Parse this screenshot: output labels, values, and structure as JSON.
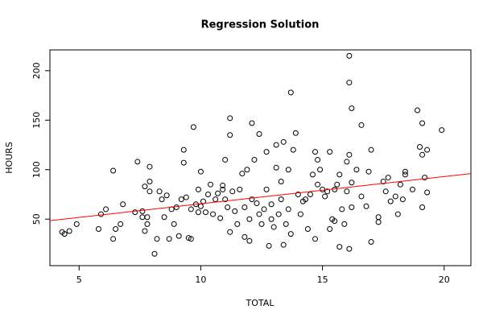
{
  "chart_data": {
    "type": "scatter",
    "title": "Regression Solution",
    "x_label": "TOTAL",
    "y_label": "HOURS",
    "color": "#000000",
    "x": [
      4.3,
      4.4,
      4.6,
      4.9,
      5.8,
      5.9,
      6.1,
      6.4,
      6.4,
      6.5,
      6.7,
      6.8,
      7.3,
      7.4,
      7.6,
      7.6,
      7.7,
      7.7,
      7.8,
      7.8,
      7.9,
      7.9,
      7.9,
      8.1,
      8.2,
      8.3,
      8.4,
      8.5,
      8.6,
      8.7,
      8.8,
      8.9,
      9.0,
      9.1,
      9.2,
      9.3,
      9.3,
      9.4,
      9.5,
      9.6,
      9.6,
      9.7,
      9.8,
      9.9,
      9.9,
      10.0,
      10.0,
      10.1,
      10.2,
      10.3,
      10.4,
      10.5,
      10.6,
      10.7,
      10.8,
      10.9,
      10.9,
      11.0,
      11.0,
      11.1,
      11.2,
      11.2,
      11.2,
      11.3,
      11.4,
      11.5,
      11.6,
      11.7,
      11.8,
      11.8,
      11.9,
      12.0,
      12.0,
      12.1,
      12.1,
      12.2,
      12.3,
      12.4,
      12.4,
      12.5,
      12.6,
      12.7,
      12.7,
      12.8,
      12.9,
      12.9,
      13.0,
      13.1,
      13.1,
      13.2,
      13.3,
      13.3,
      13.4,
      13.4,
      13.5,
      13.6,
      13.6,
      13.7,
      13.7,
      13.8,
      13.9,
      14.0,
      14.1,
      14.2,
      14.3,
      14.4,
      14.5,
      14.6,
      14.7,
      14.7,
      14.8,
      14.8,
      14.9,
      15.0,
      15.1,
      15.2,
      15.3,
      15.3,
      15.4,
      15.5,
      15.5,
      15.6,
      15.7,
      15.7,
      15.8,
      15.9,
      16.0,
      16.0,
      16.1,
      16.1,
      16.1,
      16.1,
      16.2,
      16.2,
      16.2,
      16.4,
      16.6,
      16.6,
      16.8,
      16.9,
      17.0,
      17.0,
      17.3,
      17.3,
      17.5,
      17.6,
      17.7,
      17.8,
      18.0,
      18.1,
      18.2,
      18.3,
      18.4,
      18.4,
      18.7,
      18.9,
      19.0,
      19.1,
      19.1,
      19.1,
      19.2,
      19.3,
      19.3,
      19.9
    ],
    "values": [
      37,
      35,
      38,
      45,
      40,
      55,
      60,
      30,
      99,
      40,
      45,
      65,
      57,
      108,
      58,
      52,
      38,
      83,
      45,
      52,
      78,
      88,
      103,
      15,
      30,
      78,
      70,
      52,
      74,
      30,
      60,
      45,
      62,
      33,
      70,
      107,
      120,
      72,
      31,
      30,
      60,
      143,
      65,
      57,
      80,
      98,
      63,
      68,
      57,
      75,
      85,
      55,
      70,
      76,
      51,
      80,
      84,
      110,
      70,
      62,
      37,
      135,
      152,
      78,
      58,
      45,
      80,
      96,
      32,
      62,
      100,
      28,
      50,
      147,
      70,
      110,
      66,
      55,
      136,
      45,
      60,
      118,
      80,
      23,
      50,
      65,
      42,
      102,
      125,
      55,
      88,
      70,
      24,
      128,
      45,
      100,
      60,
      178,
      35,
      120,
      137,
      75,
      55,
      68,
      70,
      40,
      75,
      95,
      118,
      30,
      85,
      110,
      100,
      80,
      73,
      78,
      40,
      118,
      50,
      48,
      80,
      85,
      22,
      95,
      60,
      45,
      78,
      108,
      20,
      115,
      188,
      215,
      162,
      87,
      62,
      100,
      145,
      73,
      63,
      98,
      27,
      120,
      52,
      47,
      88,
      78,
      92,
      68,
      73,
      55,
      85,
      70,
      95,
      98,
      80,
      160,
      123,
      147,
      62,
      115,
      92,
      120,
      77,
      140
    ],
    "fit": {
      "intercept": 38,
      "slope": 2.75,
      "color": "#ff0000"
    },
    "xlim": [
      3.8,
      21.1
    ],
    "ylim": [
      3,
      221
    ],
    "xticks": [
      5,
      10,
      15,
      20
    ],
    "yticks": [
      50,
      100,
      150,
      200
    ]
  }
}
